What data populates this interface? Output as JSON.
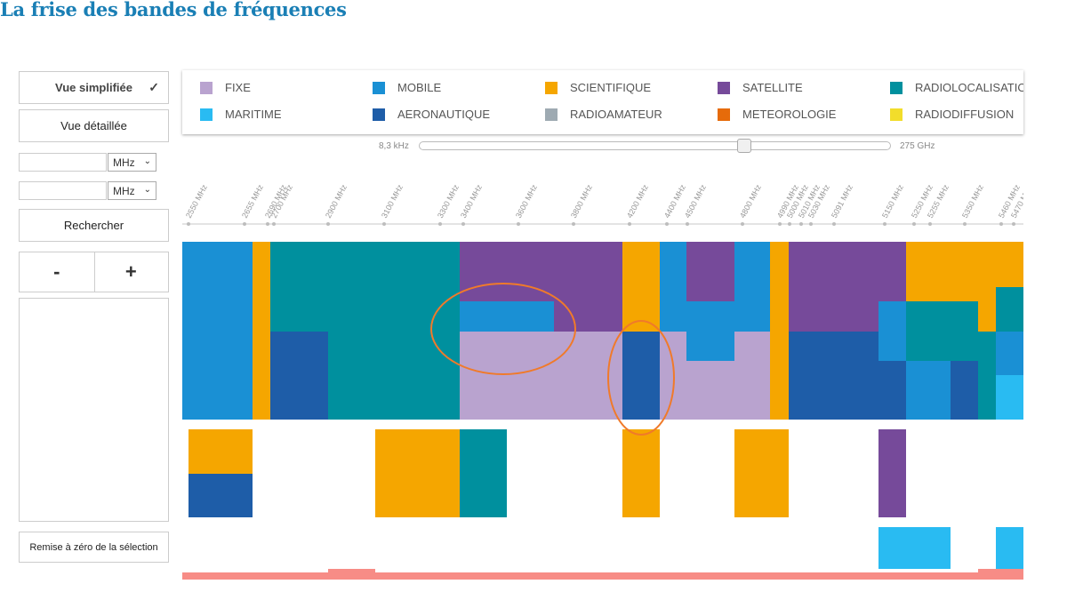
{
  "title": "La frise des bandes de fréquences",
  "controls": {
    "simple_view": "Vue simplifiée",
    "detailed_view": "Vue détaillée",
    "unit1": "MHz",
    "unit2": "MHz",
    "search": "Rechercher",
    "zoom_out": "-",
    "zoom_in": "+",
    "reset": "Remise à zéro de la sélection"
  },
  "legend": [
    {
      "label": "FIXE",
      "color": "#b9a3cf"
    },
    {
      "label": "MOBILE",
      "color": "#1a90d4"
    },
    {
      "label": "SCIENTIFIQUE",
      "color": "#f5a600"
    },
    {
      "label": "SATELLITE",
      "color": "#764a9a"
    },
    {
      "label": "RADIOLOCALISATION",
      "color": "#00909e"
    },
    {
      "label": "MARITIME",
      "color": "#29bbf2"
    },
    {
      "label": "AERONAUTIQUE",
      "color": "#1e5da8"
    },
    {
      "label": "RADIOAMATEUR",
      "color": "#9eaab2"
    },
    {
      "label": "METEOROLOGIE",
      "color": "#e66b0a"
    },
    {
      "label": "RADIODIFFUSION",
      "color": "#f2dd2b"
    }
  ],
  "slider": {
    "min_label": "8,3 kHz",
    "max_label": "275 GHz"
  },
  "frequency_ticks": [
    "2550 MHz",
    "2655 MHz",
    "2690 MHz",
    "2700 MHz",
    "2900 MHz",
    "3100 MHz",
    "3300 MHz",
    "3400 MHz",
    "3600 MHz",
    "3800 MHz",
    "4200 MHz",
    "4400 MHz",
    "4500 MHz",
    "4800 MHz",
    "4990 MHz",
    "5000 MHz",
    "5010 MHz",
    "5030 MHz",
    "5091 MHz",
    "5150 MHz",
    "5250 MHz",
    "5255 MHz",
    "5350 MHz",
    "5460 MHz",
    "5470 MHz"
  ]
}
